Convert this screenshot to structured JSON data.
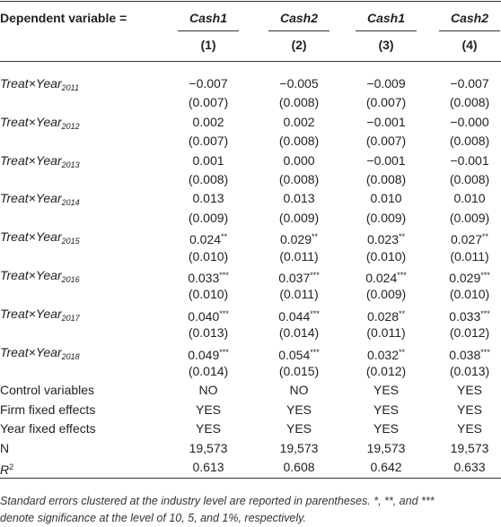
{
  "header": {
    "dep_label": "Dependent variable =",
    "columns": [
      "Cash1",
      "Cash2",
      "Cash1",
      "Cash2"
    ],
    "numbers": [
      "(1)",
      "(2)",
      "(3)",
      "(4)"
    ]
  },
  "rows": [
    {
      "label": {
        "main": "Treat×Year",
        "sub": "2011"
      },
      "coef": [
        {
          "v": "−0.007"
        },
        {
          "v": "−0.005"
        },
        {
          "v": "−0.009"
        },
        {
          "v": "−0.007"
        }
      ],
      "se": [
        "(0.007)",
        "(0.008)",
        "(0.007)",
        "(0.008)"
      ]
    },
    {
      "label": {
        "main": "Treat×Year",
        "sub": "2012"
      },
      "coef": [
        {
          "v": "0.002"
        },
        {
          "v": "0.002"
        },
        {
          "v": "−0.001"
        },
        {
          "v": "−0.000"
        }
      ],
      "se": [
        "(0.007)",
        "(0.008)",
        "(0.007)",
        "(0.008)"
      ]
    },
    {
      "label": {
        "main": "Treat×Year",
        "sub": "2013"
      },
      "coef": [
        {
          "v": "0.001"
        },
        {
          "v": "0.000"
        },
        {
          "v": "−0.001"
        },
        {
          "v": "−0.001"
        }
      ],
      "se": [
        "(0.008)",
        "(0.008)",
        "(0.008)",
        "(0.008)"
      ]
    },
    {
      "label": {
        "main": "Treat×Year",
        "sub": "2014"
      },
      "coef": [
        {
          "v": "0.013"
        },
        {
          "v": "0.013"
        },
        {
          "v": "0.010"
        },
        {
          "v": "0.010"
        }
      ],
      "se": [
        "(0.009)",
        "(0.009)",
        "(0.009)",
        "(0.009)"
      ]
    },
    {
      "label": {
        "main": "Treat×Year",
        "sub": "2015"
      },
      "coef": [
        {
          "v": "0.024",
          "sig": "**"
        },
        {
          "v": "0.029",
          "sig": "**"
        },
        {
          "v": "0.023",
          "sig": "**"
        },
        {
          "v": "0.027",
          "sig": "**"
        }
      ],
      "se": [
        "(0.010)",
        "(0.011)",
        "(0.010)",
        "(0.011)"
      ]
    },
    {
      "label": {
        "main": "Treat×Year",
        "sub": "2016"
      },
      "coef": [
        {
          "v": "0.033",
          "sig": "***"
        },
        {
          "v": "0.037",
          "sig": "***"
        },
        {
          "v": "0.024",
          "sig": "***"
        },
        {
          "v": "0.029",
          "sig": "***"
        }
      ],
      "se": [
        "(0.010)",
        "(0.011)",
        "(0.009)",
        "(0.010)"
      ]
    },
    {
      "label": {
        "main": "Treat×Year",
        "sub": "2017"
      },
      "coef": [
        {
          "v": "0.040",
          "sig": "***"
        },
        {
          "v": "0.044",
          "sig": "***"
        },
        {
          "v": "0.028",
          "sig": "**"
        },
        {
          "v": "0.033",
          "sig": "***"
        }
      ],
      "se": [
        "(0.013)",
        "(0.014)",
        "(0.011)",
        "(0.012)"
      ]
    },
    {
      "label": {
        "main": "Treat×Year",
        "sub": "2018"
      },
      "coef": [
        {
          "v": "0.049",
          "sig": "***"
        },
        {
          "v": "0.054",
          "sig": "***"
        },
        {
          "v": "0.032",
          "sig": "**"
        },
        {
          "v": "0.038",
          "sig": "***"
        }
      ],
      "se": [
        "(0.014)",
        "(0.015)",
        "(0.012)",
        "(0.013)"
      ]
    }
  ],
  "controls": [
    {
      "label": "Control variables",
      "values": [
        "NO",
        "NO",
        "YES",
        "YES"
      ]
    },
    {
      "label": "Firm fixed effects",
      "values": [
        "YES",
        "YES",
        "YES",
        "YES"
      ]
    },
    {
      "label": "Year fixed effects",
      "values": [
        "YES",
        "YES",
        "YES",
        "YES"
      ]
    }
  ],
  "stats": [
    {
      "label": {
        "main": "N"
      },
      "values": [
        "19,573",
        "19,573",
        "19,573",
        "19,573"
      ]
    },
    {
      "label": {
        "main": "R",
        "sup": "2"
      },
      "values": [
        "0.613",
        "0.608",
        "0.642",
        "0.633"
      ]
    }
  ],
  "note": [
    "Standard errors clustered at the industry level are reported in parentheses. *, **, and ***",
    "denote significance at the level of 10, 5, and 1%, respectively."
  ]
}
